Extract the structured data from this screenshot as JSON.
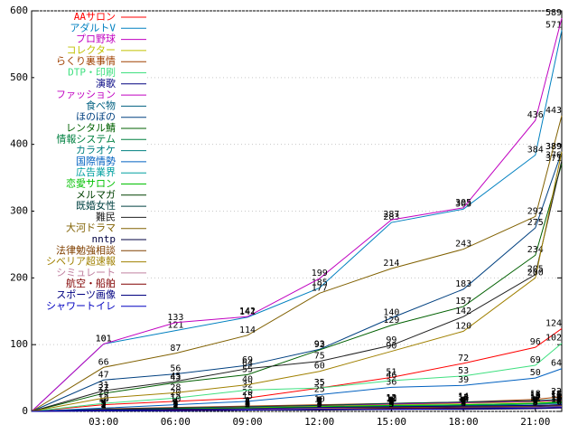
{
  "chart_data": {
    "type": "line",
    "x": [
      0,
      3,
      6,
      9,
      12,
      15,
      18,
      21,
      22.1
    ],
    "xlim": [
      0,
      22.1
    ],
    "xticks": [
      {
        "value": 3,
        "label": "03:00"
      },
      {
        "value": 6,
        "label": "06:00"
      },
      {
        "value": 9,
        "label": "09:00"
      },
      {
        "value": 12,
        "label": "12:00"
      },
      {
        "value": 15,
        "label": "15:00"
      },
      {
        "value": 18,
        "label": "18:00"
      },
      {
        "value": 21,
        "label": "21:00"
      }
    ],
    "ylim": [
      0,
      600
    ],
    "yticks": [
      0,
      100,
      200,
      300,
      400,
      500,
      600
    ],
    "grid": true,
    "legend": "upper-left",
    "series": [
      {
        "name": "AAサロン",
        "color": "#ff0000",
        "values": [
          0,
          10,
          15,
          20,
          35,
          51,
          72,
          96,
          124
        ]
      },
      {
        "name": "アダルトV",
        "color": "#0080c0",
        "values": [
          0,
          101,
          121,
          141,
          185,
          283,
          303,
          384,
          571
        ]
      },
      {
        "name": "プロ野球",
        "color": "#c000c0",
        "values": [
          0,
          101,
          133,
          142,
          199,
          287,
          305,
          436,
          589
        ]
      },
      {
        "name": "コレクター",
        "color": "#c0c000",
        "values": [
          0,
          2,
          4,
          6,
          8,
          10,
          12,
          14,
          16
        ]
      },
      {
        "name": "らくり裏事情",
        "color": "#a04000",
        "values": [
          0,
          4,
          6,
          8,
          10,
          12,
          14,
          18,
          22
        ]
      },
      {
        "name": "DTP・印刷",
        "color": "#40e080",
        "values": [
          0,
          12,
          20,
          32,
          35,
          46,
          53,
          69,
          102
        ]
      },
      {
        "name": "演歌",
        "color": "#000080",
        "values": [
          0,
          1,
          2,
          3,
          4,
          5,
          6,
          7,
          8
        ]
      },
      {
        "name": "ファッション",
        "color": "#c000c0",
        "values": [
          0,
          3,
          5,
          7,
          9,
          11,
          13,
          15,
          17
        ]
      },
      {
        "name": "食べ物",
        "color": "#006080",
        "values": [
          0,
          2,
          3,
          4,
          6,
          8,
          10,
          12,
          14
        ]
      },
      {
        "name": "ほのぼの",
        "color": "#004080",
        "values": [
          0,
          47,
          56,
          69,
          93,
          140,
          183,
          275,
          389
        ]
      },
      {
        "name": "レンタル鯖",
        "color": "#006000",
        "values": [
          0,
          27,
          43,
          55,
          92,
          129,
          157,
          234,
          371
        ]
      },
      {
        "name": "情報システム",
        "color": "#008040",
        "values": [
          0,
          1,
          2,
          4,
          5,
          7,
          9,
          11,
          13
        ]
      },
      {
        "name": "カラオケ",
        "color": "#008080",
        "values": [
          0,
          2,
          3,
          5,
          6,
          8,
          9,
          11,
          12
        ]
      },
      {
        "name": "国際情勢",
        "color": "#0060c0",
        "values": [
          0,
          5,
          10,
          15,
          25,
          36,
          39,
          50,
          64
        ]
      },
      {
        "name": "広告業界",
        "color": "#00a0a0",
        "values": [
          0,
          1,
          2,
          3,
          5,
          6,
          7,
          8,
          9
        ]
      },
      {
        "name": "恋愛サロン",
        "color": "#00c000",
        "values": [
          0,
          2,
          4,
          5,
          7,
          9,
          10,
          12,
          14
        ]
      },
      {
        "name": "メルマガ",
        "color": "#004000",
        "values": [
          0,
          1,
          3,
          4,
          5,
          6,
          8,
          9,
          10
        ]
      },
      {
        "name": "既婚女性",
        "color": "#004040",
        "values": [
          0,
          3,
          5,
          7,
          9,
          12,
          14,
          16,
          18
        ]
      },
      {
        "name": "難民",
        "color": "#202020",
        "values": [
          0,
          31,
          45,
          64,
          75,
          99,
          142,
          205,
          376
        ]
      },
      {
        "name": "大河ドラマ",
        "color": "#806000",
        "values": [
          0,
          66,
          87,
          114,
          177,
          214,
          243,
          292,
          443
        ]
      },
      {
        "name": "nntp",
        "color": "#000040",
        "values": [
          0,
          1,
          1,
          2,
          2,
          3,
          3,
          4,
          5
        ]
      },
      {
        "name": "法律勉強相談",
        "color": "#804000",
        "values": [
          0,
          2,
          3,
          4,
          5,
          6,
          7,
          8,
          9
        ]
      },
      {
        "name": "シベリア超速報",
        "color": "#a08000",
        "values": [
          0,
          20,
          28,
          40,
          60,
          90,
          120,
          200,
          389
        ]
      },
      {
        "name": "シミュレート",
        "color": "#c080a0",
        "values": [
          0,
          1,
          2,
          3,
          4,
          4,
          5,
          6,
          7
        ]
      },
      {
        "name": "航空・船舶",
        "color": "#800000",
        "values": [
          0,
          1,
          2,
          2,
          3,
          4,
          5,
          5,
          6
        ]
      },
      {
        "name": "スポーツ画像",
        "color": "#000080",
        "values": [
          0,
          2,
          3,
          4,
          6,
          7,
          8,
          9,
          10
        ]
      },
      {
        "name": "シャワートイレ",
        "color": "#0000c0",
        "values": [
          0,
          1,
          1,
          2,
          3,
          3,
          4,
          5,
          6
        ]
      }
    ]
  }
}
